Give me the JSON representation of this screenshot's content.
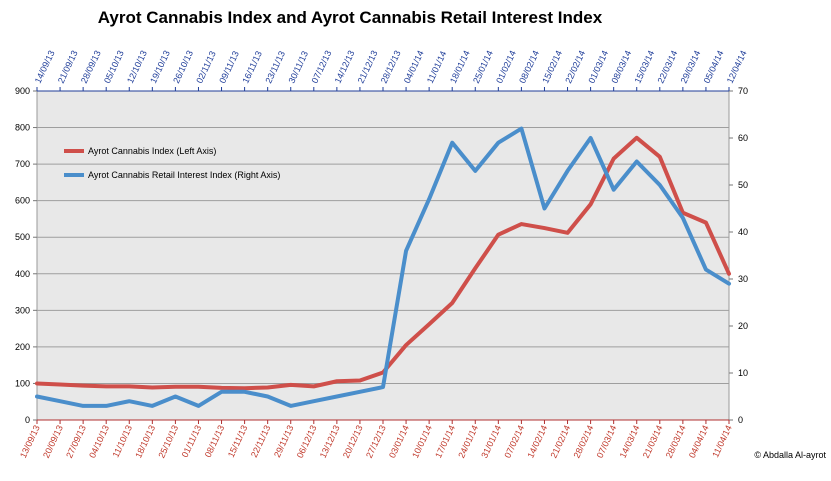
{
  "chart_data": {
    "type": "line",
    "title": "Ayrot Cannabis Index and Ayrot Cannabis Retail Interest Index",
    "credit": "© Abdalla Al-ayrot",
    "x_bottom": [
      "13/09/13",
      "20/09/13",
      "27/09/13",
      "04/10/13",
      "11/10/13",
      "18/10/13",
      "25/10/13",
      "01/11/13",
      "08/11/13",
      "15/11/13",
      "22/11/13",
      "29/11/13",
      "06/12/13",
      "13/12/13",
      "20/12/13",
      "27/12/13",
      "03/01/14",
      "10/01/14",
      "17/01/14",
      "24/01/14",
      "31/01/14",
      "07/02/14",
      "14/02/14",
      "21/02/14",
      "28/02/14",
      "07/03/14",
      "14/03/14",
      "21/03/14",
      "28/03/14",
      "04/04/14",
      "11/04/14"
    ],
    "x_top": [
      "14/09/13",
      "21/09/13",
      "28/09/13",
      "05/10/13",
      "12/10/13",
      "19/10/13",
      "26/10/13",
      "02/11/13",
      "09/11/13",
      "16/11/13",
      "23/11/13",
      "30/11/13",
      "07/12/13",
      "14/12/13",
      "21/12/13",
      "28/12/13",
      "04/01/14",
      "11/01/14",
      "18/01/14",
      "25/01/14",
      "01/02/14",
      "08/02/14",
      "15/02/14",
      "22/02/14",
      "01/03/14",
      "08/03/14",
      "15/03/14",
      "22/03/14",
      "29/03/14",
      "05/04/14",
      "12/04/14"
    ],
    "ylim_left": [
      0,
      900
    ],
    "ylim_right": [
      0,
      70
    ],
    "yticks_left": [
      0,
      100,
      200,
      300,
      400,
      500,
      600,
      700,
      800,
      900
    ],
    "yticks_right": [
      0,
      10,
      20,
      30,
      40,
      50,
      60,
      70
    ],
    "grid": true,
    "legend_position": "top-left",
    "series": [
      {
        "name": "Ayrot Cannabis Index (Left Axis)",
        "axis": "left",
        "color": "#cf4f4a",
        "values": [
          100,
          97,
          94,
          92,
          92,
          89,
          91,
          91,
          88,
          87,
          89,
          96,
          92,
          106,
          108,
          130,
          205,
          262,
          320,
          415,
          507,
          536,
          525,
          512,
          590,
          715,
          772,
          720,
          567,
          540,
          400
        ]
      },
      {
        "name": "Ayrot Cannabis Retail Interest Index (Right Axis)",
        "axis": "right",
        "color": "#4a8ecb",
        "values": [
          5,
          4,
          3,
          3,
          4,
          3,
          5,
          3,
          6,
          6,
          5,
          3,
          4,
          5,
          6,
          7,
          36,
          47,
          59,
          53,
          59,
          62,
          45,
          53,
          60,
          49,
          55,
          50,
          43,
          32,
          29
        ]
      }
    ]
  }
}
